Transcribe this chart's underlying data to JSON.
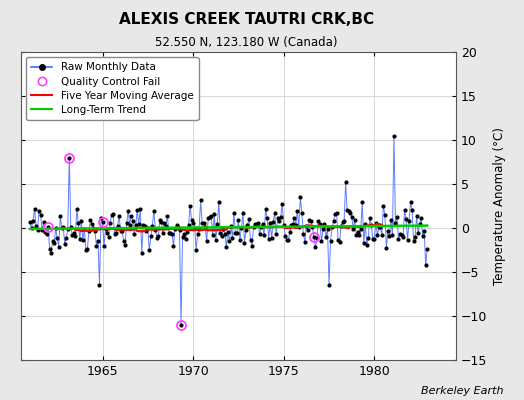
{
  "title": "ALEXIS CREEK TAUTRI CRK,BC",
  "subtitle": "52.550 N, 123.180 W (Canada)",
  "ylabel": "Temperature Anomaly (°C)",
  "credit": "Berkeley Earth",
  "ylim": [
    -15,
    20
  ],
  "yticks": [
    -15,
    -10,
    -5,
    0,
    5,
    10,
    15,
    20
  ],
  "xlim": [
    1960.5,
    1984.5
  ],
  "xticks": [
    1965,
    1970,
    1975,
    1980
  ],
  "fig_bg_color": "#e8e8e8",
  "plot_bg_color": "#ffffff",
  "line_color": "#4466ff",
  "dot_color": "#000000",
  "ma_color": "#ff0000",
  "trend_color": "#00cc00",
  "qc_color": "#ff44ff",
  "seed": 42,
  "n_months": 264,
  "start_year": 1961.0,
  "outliers": {
    "1963.17": 8.0,
    "1964.83": -6.5,
    "1969.33": -11.0,
    "1981.08": 10.5,
    "1977.5": -6.5
  },
  "qc_years": [
    1963.17,
    1962.0,
    1965.0,
    1969.33,
    1976.67
  ],
  "figsize": [
    5.24,
    4.0
  ],
  "dpi": 100
}
